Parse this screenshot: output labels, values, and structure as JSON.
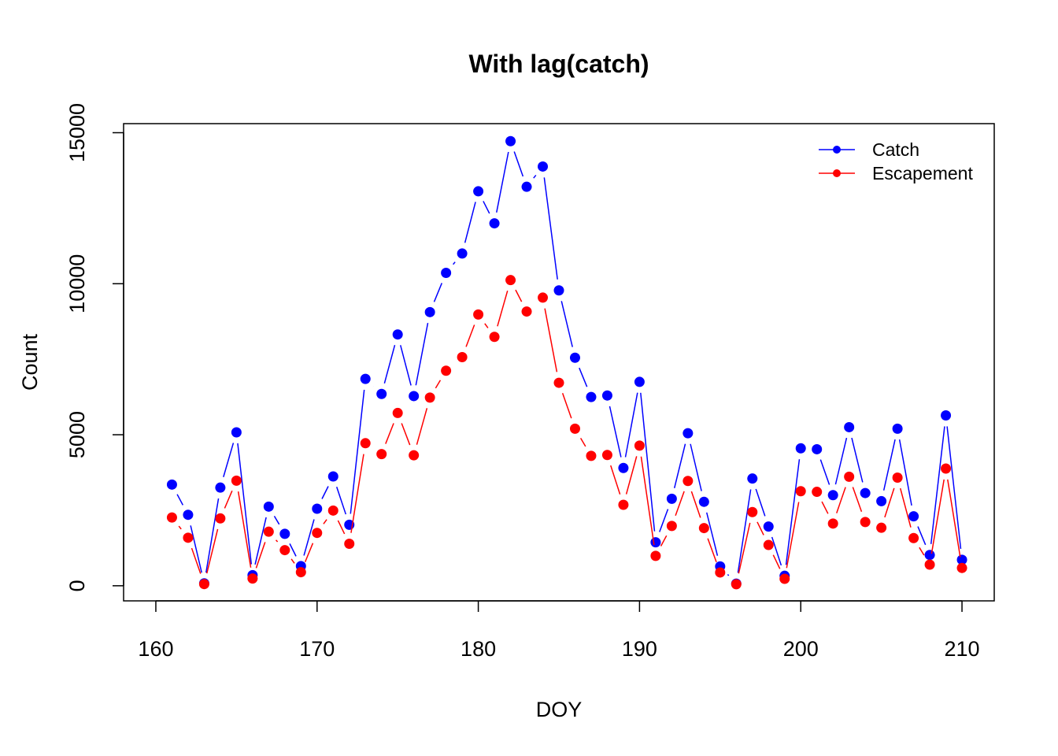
{
  "chart_data": {
    "type": "line",
    "title": "With lag(catch)",
    "xlabel": "DOY",
    "ylabel": "Count",
    "xlim": [
      158,
      212
    ],
    "ylim": [
      -500,
      15300
    ],
    "xticks": [
      160,
      170,
      180,
      190,
      200,
      210
    ],
    "yticks": [
      0,
      5000,
      10000,
      15000
    ],
    "grid": false,
    "legend_position": "top-right",
    "x": [
      161,
      162,
      163,
      164,
      165,
      166,
      167,
      168,
      169,
      170,
      171,
      172,
      173,
      174,
      175,
      176,
      177,
      178,
      179,
      180,
      181,
      182,
      183,
      184,
      185,
      186,
      187,
      188,
      189,
      190,
      191,
      192,
      193,
      194,
      195,
      196,
      197,
      198,
      199,
      200,
      201,
      202,
      203,
      204,
      205,
      206,
      207,
      208,
      209,
      210
    ],
    "series": [
      {
        "name": "Catch",
        "color": "#0000ff",
        "values": [
          3350,
          2350,
          80,
          3250,
          5080,
          350,
          2620,
          1720,
          650,
          2550,
          3620,
          2020,
          6850,
          6350,
          8320,
          6280,
          9060,
          10360,
          11000,
          13060,
          12000,
          14720,
          13210,
          13880,
          9780,
          7550,
          6250,
          6300,
          3900,
          6750,
          1440,
          2880,
          5050,
          2780,
          640,
          70,
          3550,
          1960,
          330,
          4550,
          4520,
          3000,
          5250,
          3070,
          2800,
          5200,
          2300,
          1020,
          5640,
          860
        ]
      },
      {
        "name": "Escapement",
        "color": "#ff0000",
        "values": [
          2260,
          1590,
          55,
          2230,
          3480,
          240,
          1790,
          1180,
          450,
          1750,
          2490,
          1390,
          4720,
          4360,
          5720,
          4320,
          6230,
          7120,
          7570,
          8980,
          8240,
          10120,
          9080,
          9540,
          6720,
          5200,
          4300,
          4330,
          2680,
          4640,
          990,
          1980,
          3470,
          1910,
          440,
          50,
          2440,
          1350,
          230,
          3130,
          3110,
          2060,
          3610,
          2110,
          1920,
          3580,
          1580,
          700,
          3880,
          590
        ]
      }
    ]
  }
}
